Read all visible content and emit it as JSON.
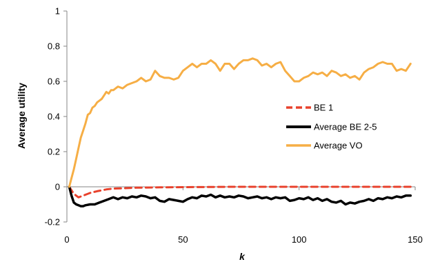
{
  "chart_data": {
    "type": "line",
    "title": "",
    "xlabel": "k",
    "ylabel": "Average utility",
    "xlim": [
      0,
      150
    ],
    "ylim": [
      -0.2,
      1
    ],
    "xticks": [
      0,
      50,
      100,
      150
    ],
    "yticks": [
      -0.2,
      0,
      0.2,
      0.4,
      0.6,
      0.8,
      1
    ],
    "ytick_labels": [
      "-0.2",
      "0",
      "0.2",
      "0.4",
      "0.6",
      "0.8",
      "1"
    ],
    "xtick_labels": [
      "0",
      "50",
      "100",
      "150"
    ],
    "grid": false,
    "legend_position": "right",
    "series": [
      {
        "name": "BE 1",
        "color": "#e8412c",
        "style": "dashed",
        "x": [
          1,
          3,
          5,
          7,
          10,
          13,
          17,
          20,
          25,
          30,
          40,
          50,
          60,
          70,
          80,
          90,
          100,
          110,
          120,
          130,
          140,
          148
        ],
        "y": [
          0,
          -0.04,
          -0.06,
          -0.05,
          -0.035,
          -0.025,
          -0.015,
          -0.01,
          -0.008,
          -0.005,
          -0.003,
          -0.002,
          -0.001,
          0,
          0,
          0,
          0,
          0,
          0,
          0,
          0,
          0
        ]
      },
      {
        "name": "Average BE 2-5",
        "color": "#000000",
        "style": "solid",
        "x": [
          1,
          2,
          3,
          4,
          5,
          6,
          7,
          8,
          10,
          12,
          14,
          16,
          18,
          20,
          22,
          24,
          26,
          28,
          30,
          32,
          34,
          36,
          38,
          40,
          42,
          44,
          46,
          48,
          50,
          52,
          54,
          56,
          58,
          60,
          62,
          64,
          66,
          68,
          70,
          72,
          74,
          76,
          78,
          80,
          82,
          84,
          86,
          88,
          90,
          92,
          94,
          96,
          98,
          100,
          102,
          104,
          106,
          108,
          110,
          112,
          114,
          116,
          118,
          120,
          122,
          124,
          126,
          128,
          130,
          132,
          134,
          136,
          138,
          140,
          142,
          144,
          146,
          148
        ],
        "y": [
          0,
          -0.05,
          -0.09,
          -0.1,
          -0.105,
          -0.11,
          -0.11,
          -0.105,
          -0.1,
          -0.1,
          -0.09,
          -0.08,
          -0.07,
          -0.06,
          -0.07,
          -0.06,
          -0.065,
          -0.055,
          -0.06,
          -0.05,
          -0.055,
          -0.065,
          -0.06,
          -0.08,
          -0.085,
          -0.07,
          -0.075,
          -0.08,
          -0.085,
          -0.07,
          -0.06,
          -0.065,
          -0.05,
          -0.055,
          -0.045,
          -0.06,
          -0.05,
          -0.06,
          -0.055,
          -0.06,
          -0.05,
          -0.055,
          -0.065,
          -0.06,
          -0.055,
          -0.065,
          -0.06,
          -0.07,
          -0.06,
          -0.065,
          -0.06,
          -0.08,
          -0.075,
          -0.065,
          -0.07,
          -0.06,
          -0.075,
          -0.065,
          -0.08,
          -0.07,
          -0.085,
          -0.09,
          -0.08,
          -0.1,
          -0.09,
          -0.095,
          -0.085,
          -0.08,
          -0.07,
          -0.08,
          -0.065,
          -0.07,
          -0.06,
          -0.065,
          -0.055,
          -0.06,
          -0.05,
          -0.05
        ]
      },
      {
        "name": "Average VO",
        "color": "#f6ae45",
        "style": "solid",
        "x": [
          1,
          2,
          3,
          4,
          5,
          6,
          7,
          8,
          9,
          10,
          11,
          12,
          13,
          14,
          15,
          16,
          17,
          18,
          19,
          20,
          22,
          24,
          26,
          28,
          30,
          32,
          34,
          36,
          38,
          40,
          42,
          44,
          46,
          48,
          50,
          52,
          54,
          56,
          58,
          60,
          62,
          64,
          66,
          68,
          70,
          72,
          74,
          76,
          78,
          80,
          82,
          84,
          86,
          88,
          90,
          92,
          94,
          96,
          98,
          100,
          102,
          104,
          106,
          108,
          110,
          112,
          114,
          116,
          118,
          120,
          122,
          124,
          126,
          128,
          130,
          132,
          134,
          136,
          138,
          140,
          142,
          144,
          146,
          148
        ],
        "y": [
          0,
          0.05,
          0.1,
          0.16,
          0.22,
          0.28,
          0.32,
          0.36,
          0.41,
          0.42,
          0.45,
          0.46,
          0.48,
          0.49,
          0.5,
          0.52,
          0.54,
          0.53,
          0.55,
          0.55,
          0.57,
          0.56,
          0.58,
          0.59,
          0.6,
          0.62,
          0.6,
          0.61,
          0.66,
          0.63,
          0.62,
          0.62,
          0.61,
          0.62,
          0.66,
          0.68,
          0.7,
          0.68,
          0.7,
          0.7,
          0.72,
          0.7,
          0.66,
          0.7,
          0.7,
          0.67,
          0.7,
          0.72,
          0.72,
          0.73,
          0.72,
          0.69,
          0.7,
          0.68,
          0.7,
          0.71,
          0.66,
          0.63,
          0.6,
          0.6,
          0.62,
          0.63,
          0.65,
          0.64,
          0.65,
          0.63,
          0.66,
          0.65,
          0.63,
          0.64,
          0.62,
          0.63,
          0.61,
          0.65,
          0.67,
          0.68,
          0.7,
          0.71,
          0.7,
          0.7,
          0.66,
          0.67,
          0.66,
          0.7
        ]
      }
    ]
  }
}
